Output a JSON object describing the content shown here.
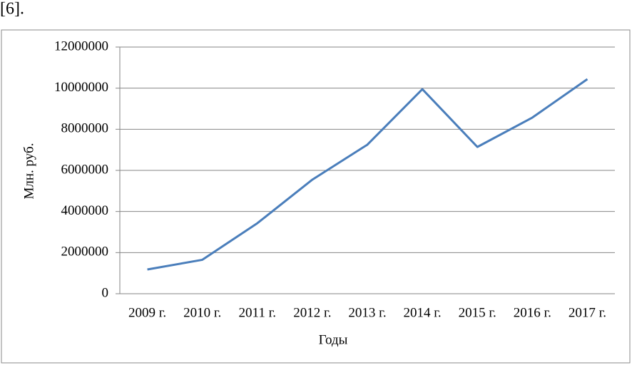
{
  "document": {
    "text": "[6]."
  },
  "chart_data": {
    "type": "line",
    "y_label": "Млн. руб.",
    "x_label": "Годы",
    "categories": [
      "2009 г.",
      "2010 г.",
      "2011 г.",
      "2012 г.",
      "2013 г.",
      "2014 г.",
      "2015 г.",
      "2016 г.",
      "2017 г."
    ],
    "series": [
      {
        "color": "#4a7ebb",
        "values": [
          1180000,
          1650000,
          3430000,
          5550000,
          7250000,
          9950000,
          7140000,
          8570000,
          10440000
        ]
      }
    ],
    "ylim": [
      0,
      12000000
    ],
    "yticks": [
      0,
      2000000,
      4000000,
      6000000,
      8000000,
      10000000,
      12000000
    ],
    "grid": true
  }
}
